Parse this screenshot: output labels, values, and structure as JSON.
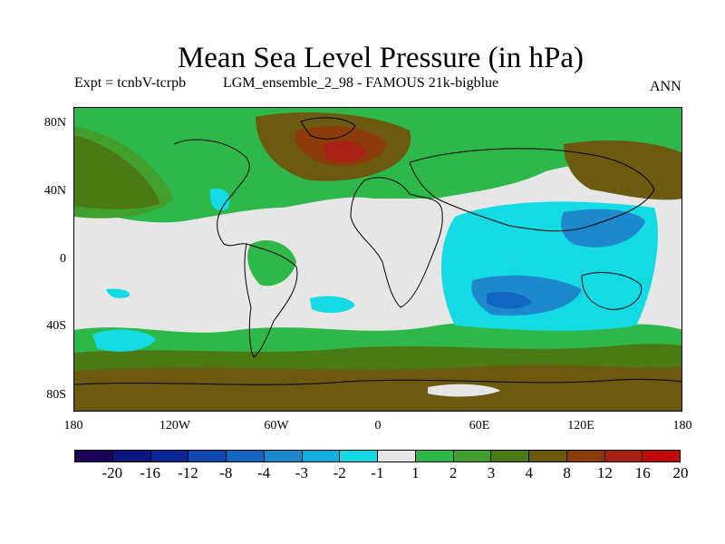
{
  "title": "Mean Sea Level Pressure (in hPa)",
  "experiment": "Expt = tcnbV-tcrpb",
  "ensemble": "LGM_ensemble_2_98 - FAMOUS 21k-bigblue",
  "season": "ANN",
  "map": {
    "y_ticks": [
      "80N",
      "40N",
      "0",
      "40S",
      "80S"
    ],
    "x_ticks": [
      "180",
      "120W",
      "60W",
      "0",
      "60E",
      "120E",
      "180"
    ]
  },
  "colorbar": {
    "labels": [
      "-20",
      "-16",
      "-12",
      "-8",
      "-4",
      "-3",
      "-2",
      "-1",
      "1",
      "2",
      "3",
      "4",
      "8",
      "12",
      "16",
      "20"
    ],
    "colors": [
      "#1a0057",
      "#0d1680",
      "#0a2699",
      "#0f47b0",
      "#1266c2",
      "#1e88cc",
      "#14aee0",
      "#14dbe3",
      "#e6e6e6",
      "#2eb84a",
      "#409f2d",
      "#4b7a14",
      "#6b5a0f",
      "#8c3c0a",
      "#a82014",
      "#c20a0a"
    ]
  }
}
